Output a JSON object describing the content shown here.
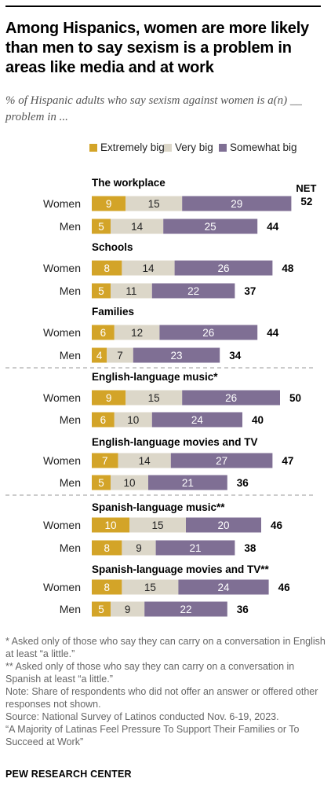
{
  "title": "Among Hispanics, women are more likely than men to say sexism is a problem in areas like media and at work",
  "subtitle": "% of Hispanic adults who say sexism against women is a(n) __ problem in ...",
  "legend": [
    {
      "label": "Extremely big",
      "color": "#d3a428"
    },
    {
      "label": "Very big",
      "color": "#dcd7c9"
    },
    {
      "label": "Somewhat big",
      "color": "#7f6f94"
    }
  ],
  "net_label": "NET",
  "chart_data": {
    "type": "bar",
    "stacked": true,
    "orientation": "horizontal",
    "series_names": [
      "Extremely big",
      "Very big",
      "Somewhat big"
    ],
    "groups": [
      {
        "label": "The workplace",
        "rows": [
          {
            "label": "Women",
            "values": [
              9,
              15,
              29
            ],
            "net": 52
          },
          {
            "label": "Men",
            "values": [
              5,
              14,
              25
            ],
            "net": 44
          }
        ]
      },
      {
        "label": "Schools",
        "rows": [
          {
            "label": "Women",
            "values": [
              8,
              14,
              26
            ],
            "net": 48
          },
          {
            "label": "Men",
            "values": [
              5,
              11,
              22
            ],
            "net": 37
          }
        ]
      },
      {
        "label": "Families",
        "rows": [
          {
            "label": "Women",
            "values": [
              6,
              12,
              26
            ],
            "net": 44
          },
          {
            "label": "Men",
            "values": [
              4,
              7,
              23
            ],
            "net": 34
          }
        ]
      },
      {
        "label": "English-language music*",
        "rows": [
          {
            "label": "Women",
            "values": [
              9,
              15,
              26
            ],
            "net": 50
          },
          {
            "label": "Men",
            "values": [
              6,
              10,
              24
            ],
            "net": 40
          }
        ]
      },
      {
        "label": "English-language movies and TV",
        "rows": [
          {
            "label": "Women",
            "values": [
              7,
              14,
              27
            ],
            "net": 47
          },
          {
            "label": "Men",
            "values": [
              5,
              10,
              21
            ],
            "net": 36
          }
        ]
      },
      {
        "label": "Spanish-language music**",
        "rows": [
          {
            "label": "Women",
            "values": [
              10,
              15,
              20
            ],
            "net": 46
          },
          {
            "label": "Men",
            "values": [
              8,
              9,
              21
            ],
            "net": 38
          }
        ]
      },
      {
        "label": "Spanish-language movies and TV**",
        "rows": [
          {
            "label": "Women",
            "values": [
              8,
              15,
              24
            ],
            "net": 46
          },
          {
            "label": "Men",
            "values": [
              5,
              9,
              22
            ],
            "net": 36
          }
        ]
      }
    ],
    "separators_after_groups": [
      2,
      4
    ]
  },
  "notes": [
    "* Asked only of those who say they can carry on a conversation in English at least “a little.”",
    "** Asked only of those who say they can carry on a conversation in Spanish at least “a little.”",
    "Note: Share of respondents who did not offer an answer or offered other responses not shown.",
    "Source: National Survey of Latinos conducted Nov. 6-19, 2023.",
    "“A Majority of Latinas Feel Pressure To Support Their Families or To Succeed at Work”"
  ],
  "brand": "PEW RESEARCH CENTER"
}
